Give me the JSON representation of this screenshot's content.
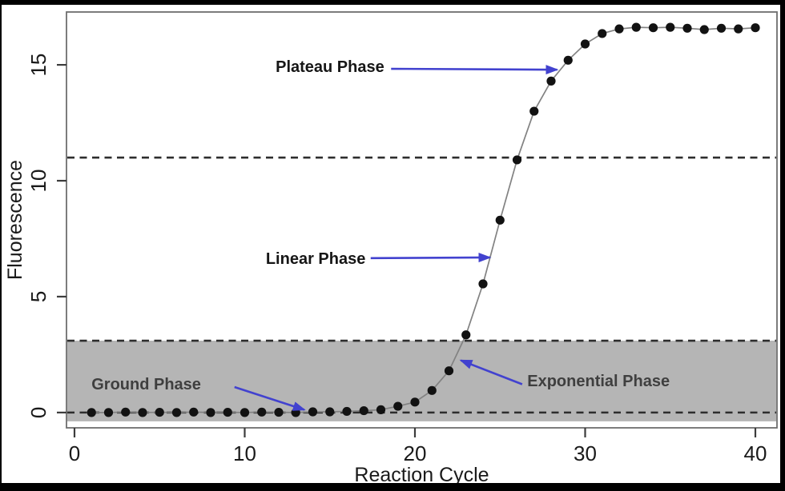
{
  "figure": {
    "frame_color": "#000000",
    "background": "#ffffff"
  },
  "chart_data": {
    "type": "scatter",
    "title": "",
    "xlabel": "Reaction Cycle",
    "ylabel": "Fluorescence",
    "xlim": [
      -0.47,
      41.27
    ],
    "ylim": [
      -0.66,
      17.28
    ],
    "x_ticks": [
      0,
      10,
      20,
      30,
      40
    ],
    "y_ticks": [
      0,
      5,
      10,
      15
    ],
    "grid": false,
    "legend": null,
    "point_color": "#121212",
    "line_color": "#828282",
    "dashed_line_color": "#2d2d2d",
    "box_color": "#6e6e6e",
    "arrow_color": "#4242cf",
    "threshold_lines_y": [
      0,
      3.1,
      11.0
    ],
    "noise_band": {
      "y_from": -0.38,
      "y_to": 3.1,
      "color": "#b5b5b5"
    },
    "x": [
      1,
      2,
      3,
      4,
      5,
      6,
      7,
      8,
      9,
      10,
      11,
      12,
      13,
      14,
      15,
      16,
      17,
      18,
      19,
      20,
      21,
      22,
      23,
      24,
      25,
      26,
      27,
      28,
      29,
      30,
      31,
      32,
      33,
      34,
      35,
      36,
      37,
      38,
      39,
      40
    ],
    "y": [
      0,
      0,
      0.02,
      0,
      0.01,
      0,
      0.02,
      0,
      0.01,
      0,
      0.02,
      0.01,
      0,
      0.03,
      0.03,
      0.05,
      0.08,
      0.12,
      0.27,
      0.45,
      0.95,
      1.8,
      3.35,
      5.55,
      8.3,
      10.9,
      13.0,
      14.3,
      15.2,
      15.9,
      16.35,
      16.55,
      16.62,
      16.6,
      16.62,
      16.58,
      16.52,
      16.58,
      16.55,
      16.6
    ],
    "annotations": [
      {
        "id": "plateau-phase",
        "label": "Plateau Phase",
        "color": "#161616",
        "text_x": 18.2,
        "text_y": 14.69,
        "anchor": "end",
        "arrow": {
          "x1": 18.6,
          "y1": 14.83,
          "x2": 28.35,
          "y2": 14.79
        }
      },
      {
        "id": "linear-phase",
        "label": "Linear Phase",
        "color": "#161616",
        "text_x": 17.1,
        "text_y": 6.41,
        "anchor": "end",
        "arrow": {
          "x1": 17.4,
          "y1": 6.66,
          "x2": 24.4,
          "y2": 6.69
        }
      },
      {
        "id": "ground-phase",
        "label": "Ground Phase",
        "color": "#3f3f3f",
        "text_x": 1.0,
        "text_y": 1.0,
        "anchor": "start",
        "arrow": {
          "x1": 9.4,
          "y1": 1.1,
          "x2": 13.5,
          "y2": 0.12
        }
      },
      {
        "id": "exponential-phase",
        "label": "Exponential Phase",
        "color": "#3f3f3f",
        "text_x": 26.6,
        "text_y": 1.14,
        "anchor": "start",
        "arrow": {
          "x1": 26.3,
          "y1": 1.22,
          "x2": 22.7,
          "y2": 2.25
        }
      }
    ]
  }
}
